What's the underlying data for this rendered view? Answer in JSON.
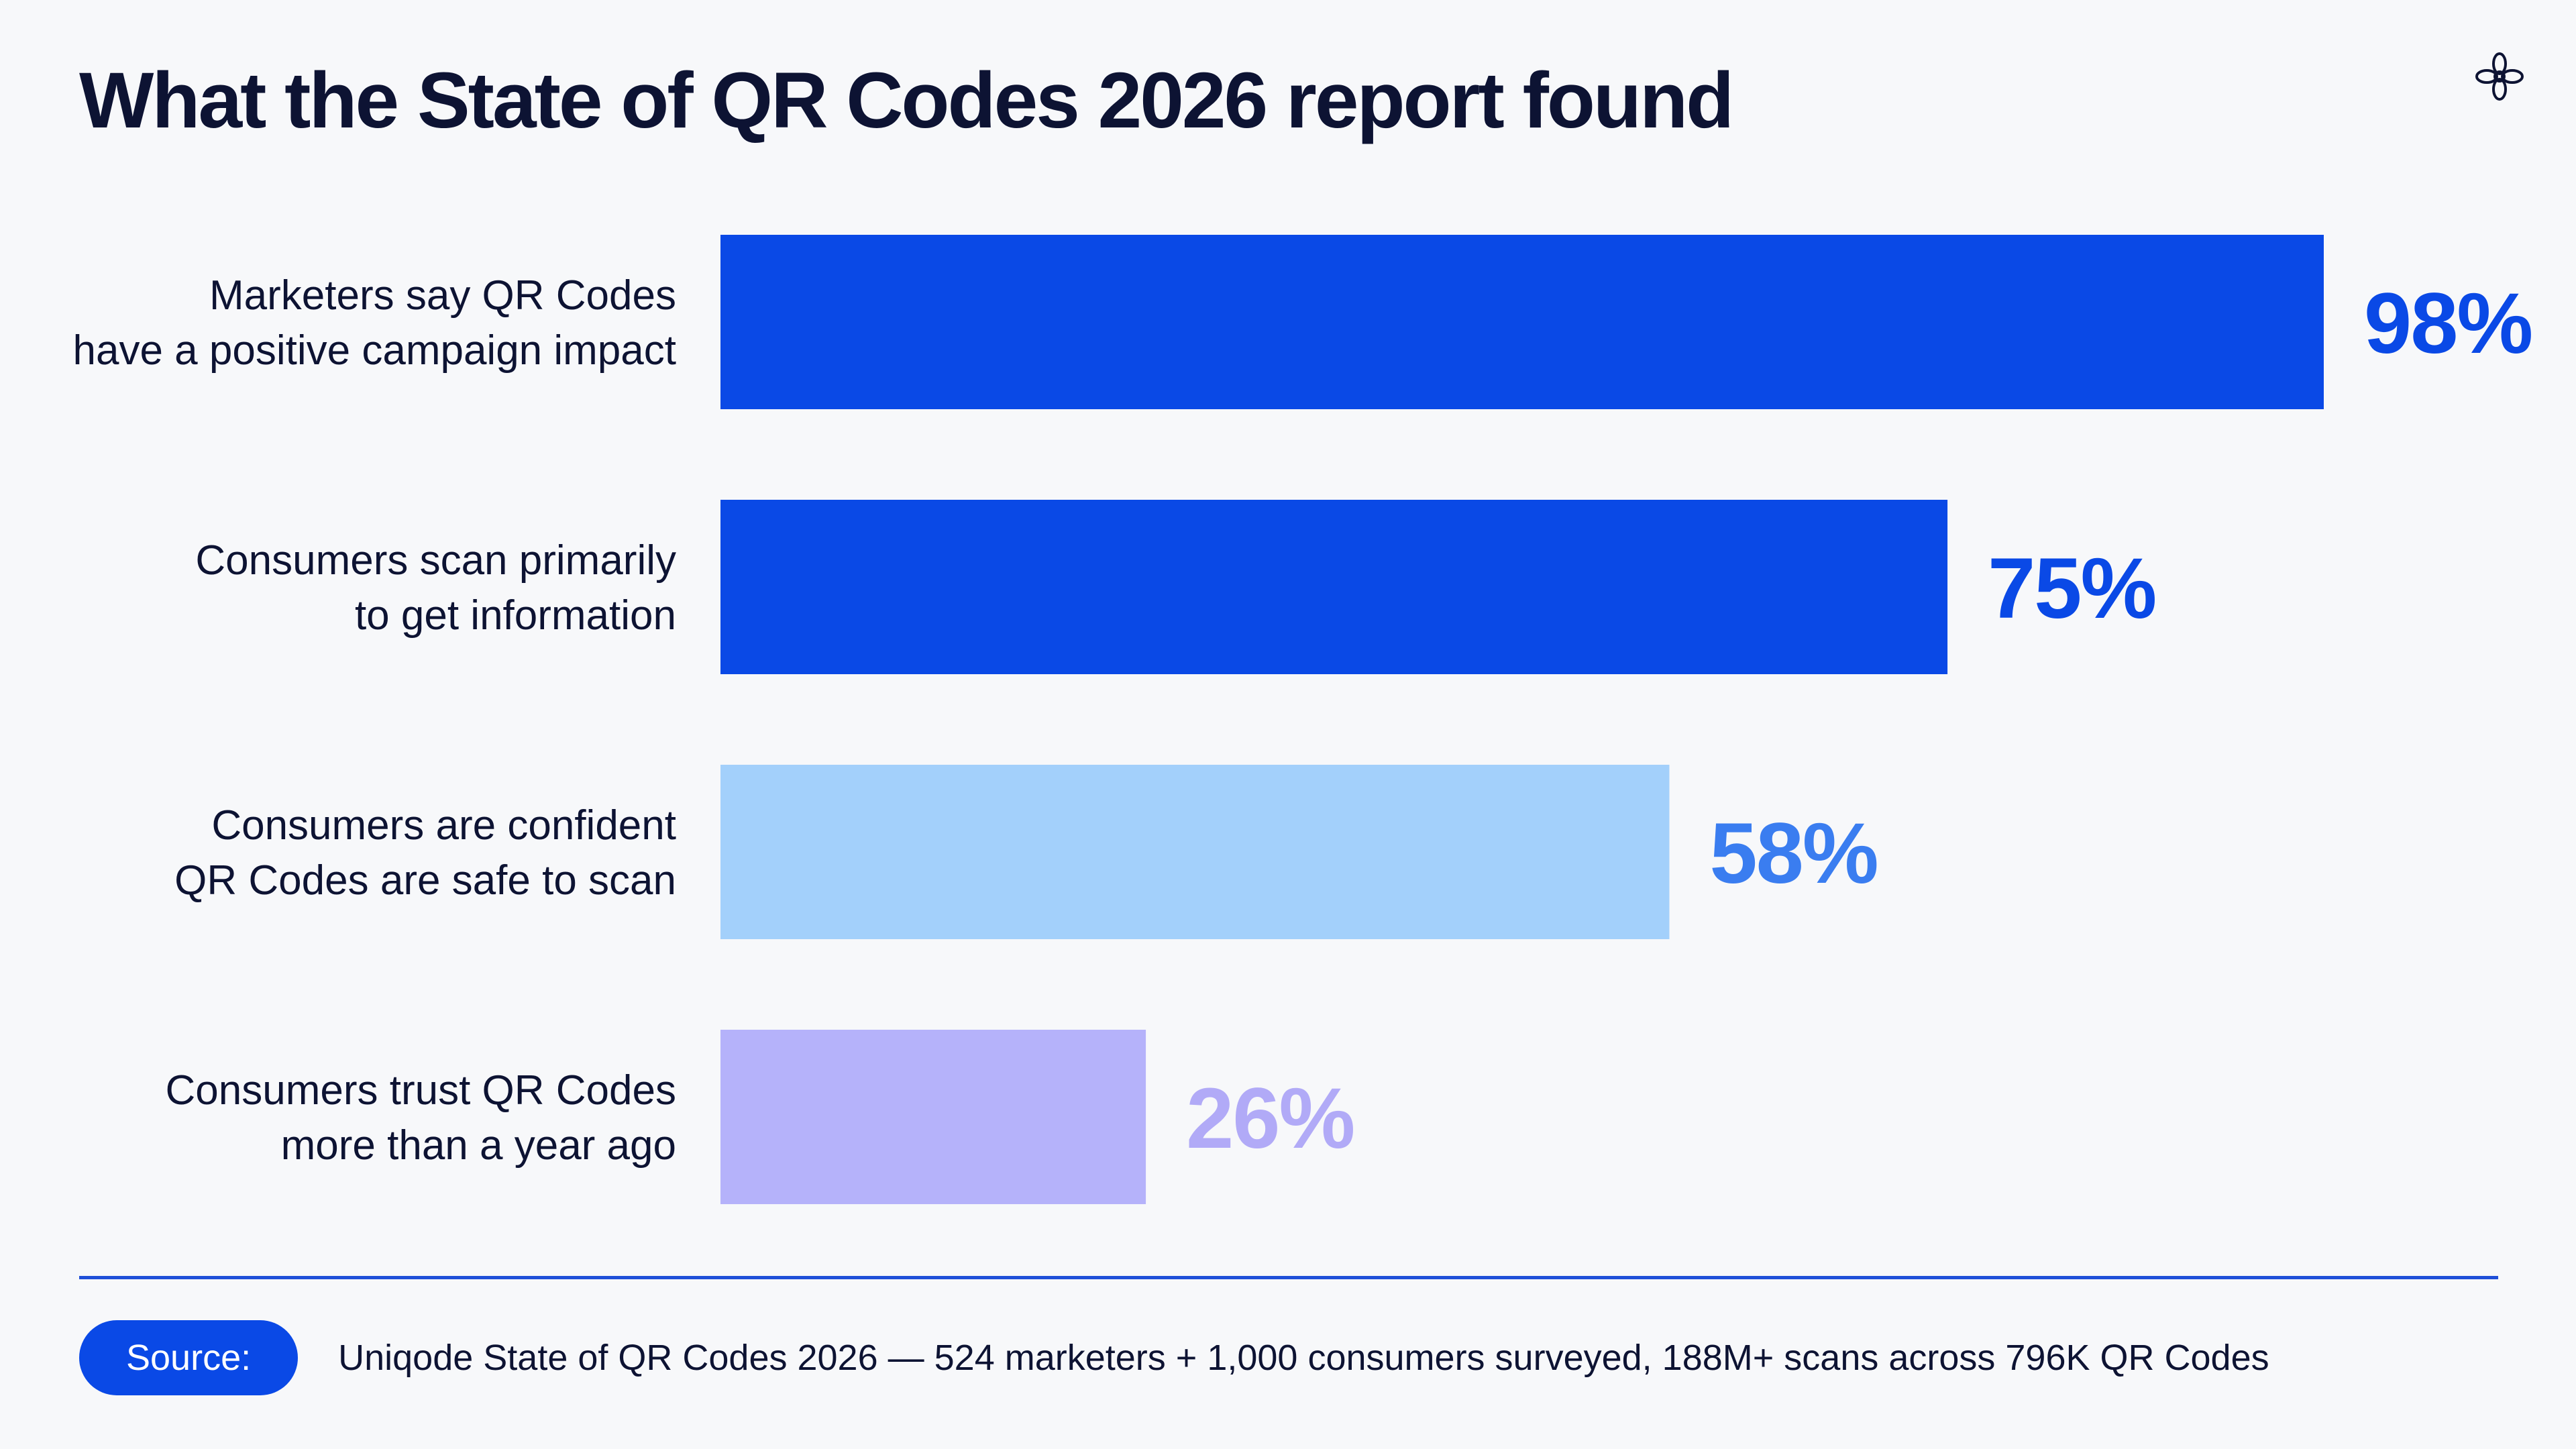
{
  "slide": {
    "title": "What the State of QR Codes 2026 report found",
    "logo_icon": "snowflake-flower-icon"
  },
  "chart_data": {
    "type": "bar",
    "orientation": "horizontal",
    "title": "What the State of QR Codes 2026 report found",
    "categories": [
      [
        "Marketers say QR Codes",
        "have a positive campaign impact"
      ],
      [
        "Consumers scan primarily",
        "to get information"
      ],
      [
        "Consumers are confident",
        "QR Codes are safe to scan"
      ],
      [
        "Consumers trust QR Codes",
        "more than a year ago"
      ]
    ],
    "values": [
      98,
      75,
      58,
      26
    ],
    "value_labels": [
      "98%",
      "75%",
      "58%",
      "26%"
    ],
    "unit": "%",
    "xlim": [
      0,
      100
    ],
    "grid": false,
    "legend": "none",
    "bar_colors": [
      "#0a49e6",
      "#0a49e6",
      "#a3d0fb",
      "#b5b2fa"
    ],
    "label_colors": [
      "#0a49e6",
      "#0a49e6",
      "#3a7df0",
      "#b1aaf7"
    ]
  },
  "footer": {
    "source_label": "Source:",
    "source_text": "Uniqode State of QR Codes 2026 — 524 marketers + 1,000 consumers surveyed, 188M+ scans across 796K QR Codes",
    "accent_color": "#0a49e6"
  }
}
